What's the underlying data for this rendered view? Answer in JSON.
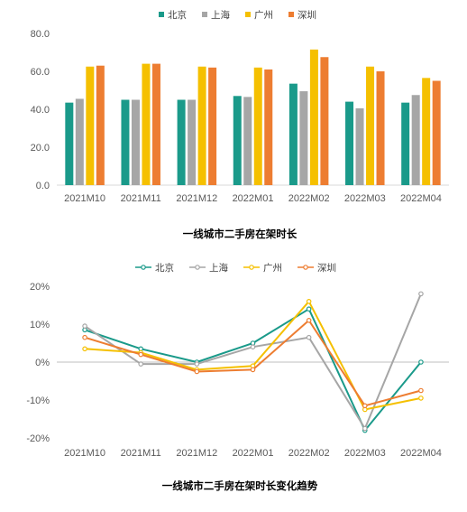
{
  "chart_data": [
    {
      "type": "bar",
      "title": "一线城市二手房在架时长",
      "categories": [
        "2021M10",
        "2021M11",
        "2021M12",
        "2022M01",
        "2022M02",
        "2022M03",
        "2022M04"
      ],
      "series": [
        {
          "name": "北京",
          "color": "#1a9a8a",
          "values": [
            43.5,
            45.0,
            45.0,
            47.0,
            53.5,
            44.0,
            43.5
          ]
        },
        {
          "name": "上海",
          "color": "#a6a6a6",
          "values": [
            45.5,
            45.0,
            45.0,
            46.5,
            49.5,
            40.5,
            47.5
          ]
        },
        {
          "name": "广州",
          "color": "#f5c000",
          "values": [
            62.5,
            64.0,
            62.5,
            62.0,
            71.5,
            62.5,
            56.5
          ]
        },
        {
          "name": "深圳",
          "color": "#ed7d31",
          "values": [
            63.0,
            64.0,
            62.0,
            61.0,
            67.5,
            60.0,
            55.0
          ]
        }
      ],
      "ylim": [
        0,
        80
      ],
      "yticks": [
        0,
        20,
        40,
        60,
        80
      ],
      "ytick_labels": [
        "0.0",
        "20.0",
        "40.0",
        "60.0",
        "80.0"
      ],
      "grid": false,
      "legend": "top-center"
    },
    {
      "type": "line",
      "title": "一线城市二手房在架时长变化趋势",
      "categories": [
        "2021M10",
        "2021M11",
        "2021M12",
        "2022M01",
        "2022M02",
        "2022M03",
        "2022M04"
      ],
      "series": [
        {
          "name": "北京",
          "color": "#1a9a8a",
          "values": [
            8.5,
            3.5,
            0.0,
            5.0,
            14.0,
            -18.0,
            0.0
          ]
        },
        {
          "name": "上海",
          "color": "#a6a6a6",
          "values": [
            9.5,
            -0.5,
            -0.5,
            4.0,
            6.5,
            -17.5,
            18.0
          ]
        },
        {
          "name": "广州",
          "color": "#f5c000",
          "values": [
            3.5,
            2.5,
            -2.0,
            -1.0,
            16.0,
            -12.5,
            -9.5
          ]
        },
        {
          "name": "深圳",
          "color": "#ed7d31",
          "values": [
            6.5,
            2.0,
            -2.5,
            -2.0,
            11.0,
            -11.5,
            -7.5
          ]
        }
      ],
      "ylim": [
        -20,
        20
      ],
      "yticks": [
        -20,
        -10,
        0,
        10,
        20
      ],
      "ytick_labels": [
        "-20%",
        "-10%",
        "0%",
        "10%",
        "20%"
      ],
      "grid": false,
      "legend": "top-center"
    }
  ]
}
